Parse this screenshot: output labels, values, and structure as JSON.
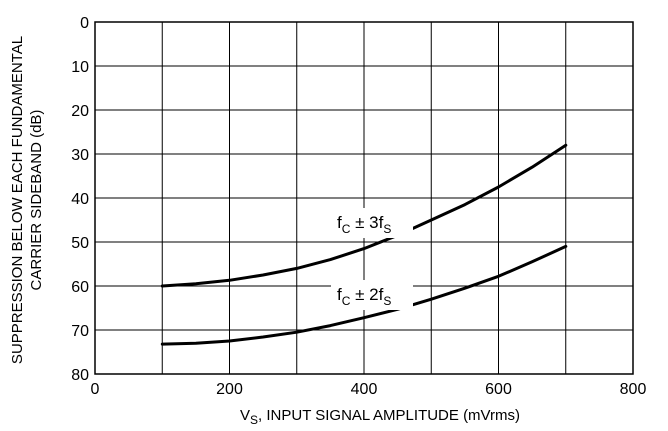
{
  "chart_data": {
    "type": "line",
    "xlabel": {
      "main": "V",
      "sub": "S",
      "rest": ", INPUT SIGNAL AMPLITUDE (mVrms)"
    },
    "ylabel": [
      "SUPPRESSION BELOW EACH FUNDAMENTAL",
      "CARRIER SIDEBAND (dB)"
    ],
    "xlim": [
      0,
      800
    ],
    "ylim": [
      0,
      80
    ],
    "y_inverted": true,
    "grid": true,
    "xticks": [
      0,
      200,
      400,
      600,
      800
    ],
    "yticks": [
      0,
      10,
      20,
      30,
      40,
      50,
      60,
      70,
      80
    ],
    "series": [
      {
        "label": {
          "f": "f",
          "fsub": "C",
          "op": " ± 3f",
          "ssub": "S"
        },
        "x": [
          100,
          150,
          200,
          250,
          300,
          350,
          400,
          450,
          500,
          550,
          600,
          650,
          700
        ],
        "y": [
          60,
          59.5,
          58.7,
          57.5,
          56,
          54,
          51.5,
          48.5,
          45,
          41.5,
          37.5,
          33,
          28
        ]
      },
      {
        "label": {
          "f": "f",
          "fsub": "C",
          "op": " ± 2f",
          "ssub": "S"
        },
        "x": [
          100,
          150,
          200,
          250,
          300,
          350,
          400,
          450,
          500,
          550,
          600,
          650,
          700
        ],
        "y": [
          73.2,
          73,
          72.5,
          71.6,
          70.5,
          69,
          67.2,
          65.3,
          63,
          60.5,
          57.8,
          54.5,
          51
        ]
      }
    ]
  }
}
